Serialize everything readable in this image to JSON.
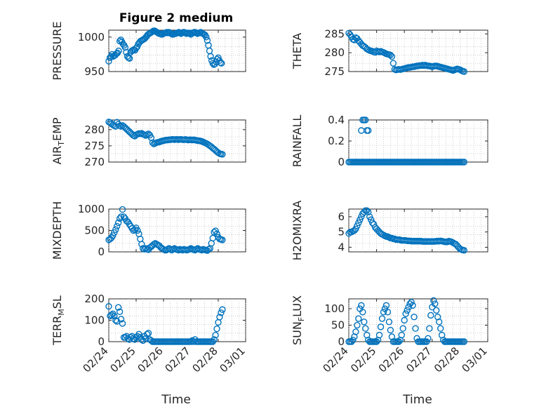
{
  "colors": {
    "series": "#0072bd",
    "axis": "#262626",
    "grid": "#b0b0b0"
  },
  "chart_data": [
    {
      "type": "scatter",
      "title": "Figure 2 medium",
      "ylabel": "PRESSURE",
      "ylabel_sub": "",
      "xlim": [
        0,
        5
      ],
      "ylim": [
        950,
        1010
      ],
      "yticks": [
        950,
        1000
      ],
      "grid": true,
      "x": [
        0.0,
        0.04,
        0.08,
        0.12,
        0.16,
        0.2,
        0.24,
        0.28,
        0.32,
        0.36,
        0.4,
        0.44,
        0.48,
        0.52,
        0.56,
        0.6,
        0.64,
        0.68,
        0.72,
        0.76,
        0.8,
        0.84,
        0.88,
        0.92,
        0.96,
        1.0,
        1.04,
        1.08,
        1.12,
        1.16,
        1.2,
        1.24,
        1.28,
        1.32,
        1.36,
        1.4,
        1.44,
        1.48,
        1.52,
        1.56,
        1.6,
        1.64,
        1.68,
        1.72,
        1.76,
        1.8,
        1.84,
        1.88,
        1.92,
        1.96,
        2.0,
        2.04,
        2.08,
        2.12,
        2.16,
        2.2,
        2.24,
        2.28,
        2.32,
        2.36,
        2.4,
        2.44,
        2.48,
        2.52,
        2.56,
        2.6,
        2.64,
        2.68,
        2.72,
        2.76,
        2.8,
        2.84,
        2.88,
        2.92,
        2.96,
        3.0,
        3.04,
        3.08,
        3.12,
        3.16,
        3.2,
        3.24,
        3.28,
        3.32,
        3.36,
        3.4,
        3.44,
        3.48,
        3.52,
        3.56,
        3.6,
        3.64,
        3.68,
        3.72,
        3.76,
        3.8,
        3.84,
        3.88,
        3.92,
        3.96,
        4.0,
        4.04,
        4.08,
        4.12
      ],
      "y": [
        965,
        970,
        972,
        975,
        972,
        973,
        974,
        976,
        977,
        980,
        994,
        996,
        993,
        990,
        988,
        985,
        978,
        972,
        970,
        969,
        978,
        980,
        981,
        982,
        981,
        984,
        986,
        990,
        992,
        994,
        995,
        996,
        997,
        998,
        1000,
        1002,
        1004,
        1005,
        1006,
        1007,
        1008,
        1009,
        1009,
        1008,
        1007,
        1006,
        1005,
        1005,
        1004,
        1004,
        1005,
        1006,
        1006,
        1007,
        1006,
        1007,
        1006,
        1005,
        1004,
        1004,
        1005,
        1005,
        1006,
        1006,
        1007,
        1006,
        1005,
        1006,
        1007,
        1007,
        1006,
        1005,
        1006,
        1006,
        1005,
        1004,
        1006,
        1006,
        1007,
        1007,
        1006,
        1005,
        1006,
        1006,
        1007,
        1006,
        1005,
        1004,
        1003,
        1000,
        995,
        988,
        980,
        972,
        966,
        962,
        960,
        961,
        964,
        968,
        970,
        966,
        963,
        962
      ]
    },
    {
      "type": "scatter",
      "title": "",
      "ylabel": "THETA",
      "ylabel_sub": "",
      "xlim": [
        0,
        5
      ],
      "ylim": [
        275,
        286
      ],
      "yticks": [
        275,
        280,
        285
      ],
      "grid": true,
      "x": [
        0.0,
        0.05,
        0.1,
        0.15,
        0.2,
        0.25,
        0.3,
        0.35,
        0.4,
        0.45,
        0.5,
        0.55,
        0.6,
        0.65,
        0.7,
        0.75,
        0.8,
        0.85,
        0.9,
        0.95,
        1.0,
        1.05,
        1.1,
        1.15,
        1.2,
        1.25,
        1.3,
        1.35,
        1.4,
        1.45,
        1.5,
        1.55,
        1.6,
        1.65,
        1.7,
        1.75,
        1.8,
        1.85,
        1.9,
        1.95,
        2.0,
        2.05,
        2.1,
        2.15,
        2.2,
        2.25,
        2.3,
        2.35,
        2.4,
        2.45,
        2.5,
        2.55,
        2.6,
        2.65,
        2.7,
        2.75,
        2.8,
        2.85,
        2.9,
        2.95,
        3.0,
        3.05,
        3.1,
        3.15,
        3.2,
        3.25,
        3.3,
        3.35,
        3.4,
        3.45,
        3.5,
        3.55,
        3.6,
        3.65,
        3.7,
        3.75,
        3.8,
        3.85,
        3.9,
        3.95,
        4.0,
        4.05,
        4.1,
        4.15
      ],
      "y": [
        285.2,
        284.8,
        284.2,
        283.6,
        283.4,
        284.0,
        283.8,
        283.2,
        282.8,
        282.3,
        281.9,
        281.7,
        281.4,
        281.0,
        280.8,
        280.6,
        280.5,
        280.4,
        280.2,
        280.1,
        280.5,
        280.3,
        280.2,
        280.4,
        280.2,
        280.1,
        279.9,
        279.7,
        279.6,
        279.5,
        279.4,
        279.0,
        277.2,
        275.6,
        275.4,
        275.5,
        275.6,
        275.5,
        275.6,
        275.7,
        275.8,
        275.9,
        276.0,
        276.1,
        276.1,
        276.2,
        276.3,
        276.3,
        276.4,
        276.5,
        276.5,
        276.6,
        276.6,
        276.7,
        276.6,
        276.7,
        276.6,
        276.5,
        276.5,
        276.4,
        276.3,
        276.4,
        276.5,
        276.5,
        276.4,
        276.3,
        276.2,
        276.1,
        276.0,
        275.9,
        275.8,
        275.7,
        275.6,
        275.5,
        275.4,
        275.3,
        275.4,
        275.6,
        275.7,
        275.6,
        275.5,
        275.3,
        275.1,
        275.0
      ]
    },
    {
      "type": "scatter",
      "title": "",
      "ylabel": "AIR",
      "ylabel_sub": "T",
      "ylabel_suffix": "EMP",
      "xlim": [
        0,
        5
      ],
      "ylim": [
        270,
        283
      ],
      "yticks": [
        270,
        275,
        280
      ],
      "grid": true,
      "x": [
        0.0,
        0.05,
        0.1,
        0.15,
        0.2,
        0.25,
        0.3,
        0.35,
        0.4,
        0.45,
        0.5,
        0.55,
        0.6,
        0.65,
        0.7,
        0.75,
        0.8,
        0.85,
        0.9,
        0.95,
        1.0,
        1.05,
        1.1,
        1.15,
        1.2,
        1.25,
        1.3,
        1.35,
        1.4,
        1.45,
        1.5,
        1.55,
        1.6,
        1.65,
        1.7,
        1.75,
        1.8,
        1.85,
        1.9,
        1.95,
        2.0,
        2.05,
        2.1,
        2.15,
        2.2,
        2.25,
        2.3,
        2.35,
        2.4,
        2.45,
        2.5,
        2.55,
        2.6,
        2.65,
        2.7,
        2.75,
        2.8,
        2.85,
        2.9,
        2.95,
        3.0,
        3.05,
        3.1,
        3.15,
        3.2,
        3.25,
        3.3,
        3.35,
        3.4,
        3.45,
        3.5,
        3.55,
        3.6,
        3.65,
        3.7,
        3.75,
        3.8,
        3.85,
        3.9,
        3.95,
        4.0,
        4.05,
        4.1,
        4.15
      ],
      "y": [
        282.4,
        282.2,
        281.8,
        281.5,
        281.2,
        281.0,
        282.3,
        281.7,
        281.2,
        281.0,
        281.3,
        281.0,
        280.6,
        280.2,
        279.8,
        279.4,
        279.0,
        278.6,
        278.2,
        278.0,
        278.4,
        278.6,
        278.8,
        278.7,
        278.9,
        278.6,
        278.4,
        278.2,
        278.5,
        278.7,
        278.3,
        277.5,
        276.0,
        275.6,
        275.8,
        276.0,
        276.1,
        276.2,
        276.4,
        276.5,
        276.6,
        276.7,
        276.8,
        276.8,
        276.9,
        276.9,
        277.0,
        277.0,
        276.9,
        277.0,
        277.0,
        276.9,
        277.0,
        277.0,
        276.9,
        276.9,
        277.0,
        276.9,
        276.8,
        276.9,
        276.9,
        276.8,
        276.9,
        276.8,
        276.7,
        276.6,
        276.6,
        276.5,
        276.4,
        276.2,
        276.0,
        275.8,
        275.6,
        275.3,
        275.0,
        274.7,
        274.3,
        274.0,
        273.6,
        273.2,
        272.9,
        272.6,
        272.5,
        272.4
      ]
    },
    {
      "type": "scatter",
      "title": "",
      "ylabel": "RAINFALL",
      "ylabel_sub": "",
      "xlim": [
        0,
        5
      ],
      "ylim": [
        0,
        0.4
      ],
      "yticks": [
        0,
        0.2,
        0.4
      ],
      "ytick_labels": [
        "0",
        "0.2",
        "0.4"
      ],
      "grid": true,
      "rain_x": [
        0.45,
        0.5,
        0.55,
        0.6,
        0.65,
        0.7
      ],
      "rain_y": [
        0.3,
        0.4,
        0.4,
        0.4,
        0.3,
        0.3
      ],
      "zero_from": 0.0,
      "zero_to": 4.15,
      "zero_step": 0.05
    },
    {
      "type": "scatter",
      "title": "",
      "ylabel": "MIXDEPTH",
      "ylabel_sub": "",
      "xlim": [
        0,
        5
      ],
      "ylim": [
        0,
        1000
      ],
      "yticks": [
        0,
        500,
        1000
      ],
      "grid": true,
      "x": [
        0.0,
        0.05,
        0.1,
        0.15,
        0.2,
        0.25,
        0.3,
        0.35,
        0.4,
        0.45,
        0.5,
        0.55,
        0.6,
        0.65,
        0.7,
        0.75,
        0.8,
        0.85,
        0.9,
        0.95,
        1.0,
        1.05,
        1.1,
        1.15,
        1.2,
        1.25,
        1.3,
        1.35,
        1.4,
        1.45,
        1.5,
        1.55,
        1.6,
        1.65,
        1.7,
        1.75,
        1.8,
        1.85,
        1.9,
        1.95,
        2.0,
        2.05,
        2.1,
        2.15,
        2.2,
        2.25,
        2.3,
        2.35,
        2.4,
        2.45,
        2.5,
        2.55,
        2.6,
        2.65,
        2.7,
        2.75,
        2.8,
        2.85,
        2.9,
        2.95,
        3.0,
        3.05,
        3.1,
        3.15,
        3.2,
        3.25,
        3.3,
        3.35,
        3.4,
        3.45,
        3.5,
        3.55,
        3.6,
        3.65,
        3.7,
        3.75,
        3.8,
        3.85,
        3.9,
        3.95,
        4.0,
        4.05,
        4.1,
        4.15
      ],
      "y": [
        280,
        300,
        330,
        380,
        450,
        520,
        600,
        680,
        780,
        820,
        990,
        820,
        780,
        720,
        700,
        650,
        600,
        550,
        500,
        520,
        560,
        500,
        420,
        300,
        180,
        80,
        60,
        80,
        60,
        50,
        100,
        120,
        150,
        180,
        200,
        180,
        160,
        140,
        100,
        80,
        60,
        40,
        40,
        60,
        80,
        60,
        40,
        60,
        80,
        60,
        50,
        40,
        60,
        50,
        40,
        60,
        50,
        40,
        50,
        60,
        80,
        60,
        50,
        40,
        60,
        80,
        60,
        50,
        40,
        60,
        50,
        40,
        30,
        60,
        80,
        200,
        320,
        460,
        490,
        420,
        340,
        300,
        290,
        280
      ]
    },
    {
      "type": "scatter",
      "title": "",
      "ylabel": "H2OMIXRA",
      "ylabel_sub": "",
      "xlim": [
        0,
        5
      ],
      "ylim": [
        3.7,
        6.5
      ],
      "yticks": [
        4,
        5,
        6
      ],
      "grid": true,
      "x": [
        0.0,
        0.05,
        0.1,
        0.15,
        0.2,
        0.25,
        0.3,
        0.35,
        0.4,
        0.45,
        0.5,
        0.55,
        0.6,
        0.65,
        0.7,
        0.75,
        0.8,
        0.85,
        0.9,
        0.95,
        1.0,
        1.05,
        1.1,
        1.15,
        1.2,
        1.25,
        1.3,
        1.35,
        1.4,
        1.45,
        1.5,
        1.55,
        1.6,
        1.65,
        1.7,
        1.75,
        1.8,
        1.85,
        1.9,
        1.95,
        2.0,
        2.05,
        2.1,
        2.15,
        2.2,
        2.25,
        2.3,
        2.35,
        2.4,
        2.45,
        2.5,
        2.55,
        2.6,
        2.65,
        2.7,
        2.75,
        2.8,
        2.85,
        2.9,
        2.95,
        3.0,
        3.05,
        3.1,
        3.15,
        3.2,
        3.25,
        3.3,
        3.35,
        3.4,
        3.45,
        3.5,
        3.55,
        3.6,
        3.65,
        3.7,
        3.75,
        3.8,
        3.85,
        3.9,
        3.95,
        4.0,
        4.05,
        4.1,
        4.15
      ],
      "y": [
        4.9,
        5.0,
        5.0,
        5.05,
        5.1,
        5.2,
        5.4,
        5.6,
        5.8,
        6.0,
        6.2,
        6.3,
        6.4,
        6.4,
        6.3,
        6.0,
        5.8,
        5.6,
        5.5,
        5.3,
        5.2,
        5.1,
        5.0,
        4.9,
        4.85,
        4.8,
        4.75,
        4.7,
        4.7,
        4.65,
        4.6,
        4.6,
        4.55,
        4.55,
        4.5,
        4.5,
        4.5,
        4.48,
        4.45,
        4.45,
        4.45,
        4.45,
        4.42,
        4.42,
        4.42,
        4.4,
        4.4,
        4.4,
        4.4,
        4.4,
        4.4,
        4.4,
        4.4,
        4.38,
        4.38,
        4.38,
        4.38,
        4.38,
        4.38,
        4.38,
        4.38,
        4.38,
        4.38,
        4.4,
        4.4,
        4.4,
        4.42,
        4.4,
        4.38,
        4.36,
        4.35,
        4.35,
        4.4,
        4.38,
        4.35,
        4.3,
        4.25,
        4.2,
        4.1,
        4.0,
        3.9,
        3.85,
        3.82,
        3.8
      ]
    },
    {
      "type": "scatter",
      "title": "",
      "ylabel": "TERR",
      "ylabel_sub": "M",
      "ylabel_suffix": "SL",
      "xlim": [
        0,
        5
      ],
      "ylim": [
        0,
        200
      ],
      "yticks": [
        0,
        100,
        200
      ],
      "grid": true,
      "x": [
        0.0,
        0.05,
        0.1,
        0.15,
        0.2,
        0.25,
        0.3,
        0.35,
        0.4,
        0.45,
        0.5,
        0.55,
        0.6,
        0.65,
        0.7,
        0.75,
        0.8,
        0.85,
        0.9,
        0.95,
        1.0,
        1.05,
        1.1,
        1.15,
        1.2,
        1.25,
        1.3,
        1.35,
        1.4,
        1.45,
        1.5,
        1.55,
        1.6,
        1.65,
        1.7,
        1.75,
        1.8,
        1.85,
        1.9,
        1.95,
        2.0,
        2.05,
        2.1,
        2.15,
        2.2,
        2.25,
        2.3,
        2.35,
        2.4,
        2.45,
        2.5,
        2.55,
        2.6,
        2.65,
        2.7,
        2.75,
        2.8,
        2.85,
        2.9,
        2.95,
        3.0,
        3.05,
        3.1,
        3.15,
        3.2,
        3.25,
        3.3,
        3.35,
        3.4,
        3.45,
        3.5,
        3.55,
        3.6,
        3.65,
        3.7,
        3.75,
        3.8,
        3.85,
        3.9,
        3.95,
        4.0,
        4.05,
        4.1,
        4.15
      ],
      "y": [
        165,
        120,
        125,
        130,
        120,
        100,
        95,
        160,
        140,
        105,
        85,
        20,
        20,
        25,
        15,
        10,
        20,
        25,
        15,
        10,
        20,
        25,
        35,
        20,
        10,
        5,
        25,
        15,
        35,
        40,
        10,
        5,
        0,
        0,
        0,
        0,
        0,
        0,
        0,
        0,
        0,
        0,
        0,
        0,
        0,
        0,
        0,
        0,
        0,
        0,
        0,
        0,
        0,
        0,
        0,
        0,
        0,
        0,
        0,
        0,
        0,
        5,
        0,
        10,
        0,
        0,
        0,
        0,
        0,
        0,
        0,
        0,
        0,
        0,
        0,
        0,
        0,
        10,
        30,
        60,
        90,
        115,
        135,
        150
      ]
    },
    {
      "type": "scatter",
      "title": "",
      "ylabel": "SUN",
      "ylabel_sub": "F",
      "ylabel_suffix": "LUX",
      "xlim": [
        0,
        5
      ],
      "ylim": [
        0,
        130
      ],
      "yticks": [
        0,
        50,
        100
      ],
      "grid": true,
      "x": [
        0.0,
        0.05,
        0.1,
        0.15,
        0.2,
        0.25,
        0.3,
        0.35,
        0.4,
        0.45,
        0.5,
        0.55,
        0.6,
        0.65,
        0.7,
        0.75,
        0.8,
        0.85,
        0.9,
        0.95,
        1.0,
        1.05,
        1.1,
        1.15,
        1.2,
        1.25,
        1.3,
        1.35,
        1.4,
        1.45,
        1.5,
        1.55,
        1.6,
        1.65,
        1.7,
        1.75,
        1.8,
        1.85,
        1.9,
        1.95,
        2.0,
        2.05,
        2.1,
        2.15,
        2.2,
        2.25,
        2.3,
        2.35,
        2.4,
        2.45,
        2.5,
        2.55,
        2.6,
        2.65,
        2.7,
        2.75,
        2.8,
        2.85,
        2.9,
        2.95,
        3.0,
        3.05,
        3.1,
        3.15,
        3.2,
        3.25,
        3.3,
        3.35,
        3.4,
        3.45,
        3.5,
        3.55,
        3.6,
        3.65,
        3.7,
        3.75,
        3.8,
        3.85,
        3.9,
        3.95,
        4.0,
        4.05,
        4.1,
        4.15
      ],
      "y": [
        0,
        0,
        0,
        5,
        15,
        30,
        50,
        70,
        100,
        110,
        90,
        60,
        40,
        20,
        5,
        0,
        0,
        0,
        0,
        0,
        0,
        5,
        20,
        45,
        70,
        90,
        100,
        110,
        90,
        60,
        35,
        15,
        0,
        0,
        0,
        0,
        0,
        5,
        20,
        40,
        65,
        85,
        95,
        105,
        115,
        120,
        110,
        75,
        40,
        10,
        0,
        0,
        0,
        0,
        0,
        0,
        0,
        10,
        40,
        80,
        105,
        125,
        115,
        95,
        75,
        60,
        40,
        20,
        5,
        0,
        0,
        0,
        0,
        0,
        0,
        0,
        0,
        0,
        0,
        0,
        0,
        0,
        0,
        0
      ]
    }
  ],
  "time_ticks": [
    "02/24",
    "02/25",
    "02/26",
    "02/27",
    "02/28",
    "03/01"
  ],
  "xlabel": "Time"
}
